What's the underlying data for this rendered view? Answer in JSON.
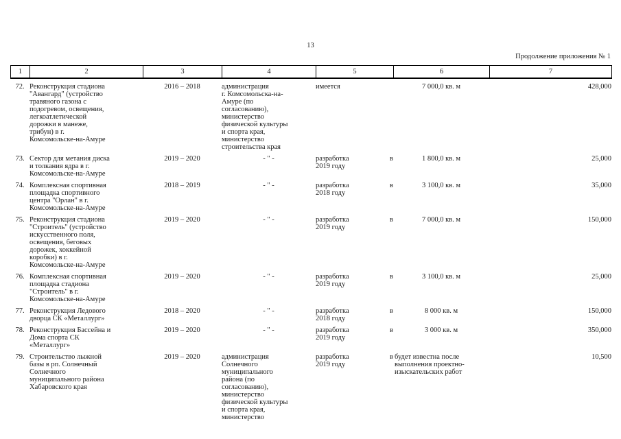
{
  "page": {
    "number": "13",
    "continuation": "Продолжение приложения № 1"
  },
  "colors": {
    "background": "#ffffff",
    "text": "#1a1a1a",
    "border": "#000000"
  },
  "table": {
    "column_numbers": [
      "1",
      "2",
      "3",
      "4",
      "5",
      "6",
      "7"
    ],
    "rows": [
      {
        "num": "72.",
        "name": "Реконструкция стадиона\n\"Авангард\" (устройство\nтравяного газона с\nподогревом, освещения,\nлегкоатлетической\nдорожки в манеже,\nтрибун) в г.\nКомсомольске-на-Амуре",
        "years": "2016 – 2018",
        "executor": {
          "ditto": false,
          "text": "администрация\nг. Комсомольска-на-\nАмуре (по\nсогласованию),\nминистерство\nфизической культуры\nи спорта края,\nминистерство\nстроительства края"
        },
        "docs": {
          "text": "имеется"
        },
        "area": {
          "align": "center",
          "text": "7 000,0 кв. м"
        },
        "cost": "428,000"
      },
      {
        "num": "73.",
        "name": "Сектор для метания диска\nи толкания ядра в г.\nКомсомольске-на-Амуре",
        "years": "2019 – 2020",
        "executor": {
          "ditto": true,
          "text": "- \" -"
        },
        "docs": {
          "left": "разработка",
          "right": "в",
          "line2": "2019 году"
        },
        "area": {
          "align": "center",
          "text": "1 800,0 кв. м"
        },
        "cost": "25,000"
      },
      {
        "num": "74.",
        "name": "Комплексная спортивная\nплощадка спортивного\nцентра \"Орлан\" в г.\nКомсомольске-на-Амуре",
        "years": "2018 – 2019",
        "executor": {
          "ditto": true,
          "text": "- \" -"
        },
        "docs": {
          "left": "разработка",
          "right": "в",
          "line2": "2018 году"
        },
        "area": {
          "align": "center",
          "text": "3 100,0 кв. м"
        },
        "cost": "35,000"
      },
      {
        "num": "75.",
        "name": "Реконструкция стадиона\n\"Строитель\" (устройство\nискусственного поля,\nосвещения, беговых\nдорожек, хоккейной\nкоробки) в г.\nКомсомольске-на-Амуре",
        "years": "2019 – 2020",
        "executor": {
          "ditto": true,
          "text": "- \" -"
        },
        "docs": {
          "left": "разработка",
          "right": "в",
          "line2": "2019 году"
        },
        "area": {
          "align": "center",
          "text": "7 000,0 кв. м"
        },
        "cost": "150,000"
      },
      {
        "num": "76.",
        "name": "Комплексная спортивная\nплощадка стадиона\n\"Строитель\" в г.\nКомсомольске-на-Амуре",
        "years": "2019 – 2020",
        "executor": {
          "ditto": true,
          "text": "- \" -"
        },
        "docs": {
          "left": "разработка",
          "right": "в",
          "line2": "2019 году"
        },
        "area": {
          "align": "center",
          "text": "3 100,0 кв. м"
        },
        "cost": "25,000"
      },
      {
        "num": "77.",
        "name": "Реконструкция Ледового\nдворца СК «Металлург»",
        "years": "2018 – 2020",
        "executor": {
          "ditto": true,
          "text": "- \" -"
        },
        "docs": {
          "left": "разработка",
          "right": "в",
          "line2": "2018 году"
        },
        "area": {
          "align": "center",
          "text": "8 000 кв. м"
        },
        "cost": "150,000"
      },
      {
        "num": "78.",
        "name": "Реконструкция Бассейна и\nДома спорта СК\n«Металлург»",
        "years": "2019 – 2020",
        "executor": {
          "ditto": true,
          "text": "- \" -"
        },
        "docs": {
          "left": "разработка",
          "right": "в",
          "line2": "2019 году"
        },
        "area": {
          "align": "center",
          "text": "3 000 кв. м"
        },
        "cost": "350,000"
      },
      {
        "num": "79.",
        "name": "Строительство лыжной\nбазы в рп. Солнечный\nСолнечного\nмуниципального района\nХабаровского края",
        "years": "2019 – 2020",
        "executor": {
          "ditto": false,
          "text": "администрация\nСолнечного\nмуниципального\nрайона (по\nсогласованию),\nминистерство\nфизической культуры\nи спорта края,\nминистерство"
        },
        "docs": {
          "left": "разработка",
          "right": "в",
          "line2": "2019 году"
        },
        "area": {
          "align": "left",
          "text": "будет известна после\nвыполнения проектно-\nизыскательских работ"
        },
        "cost": "10,500"
      }
    ]
  }
}
